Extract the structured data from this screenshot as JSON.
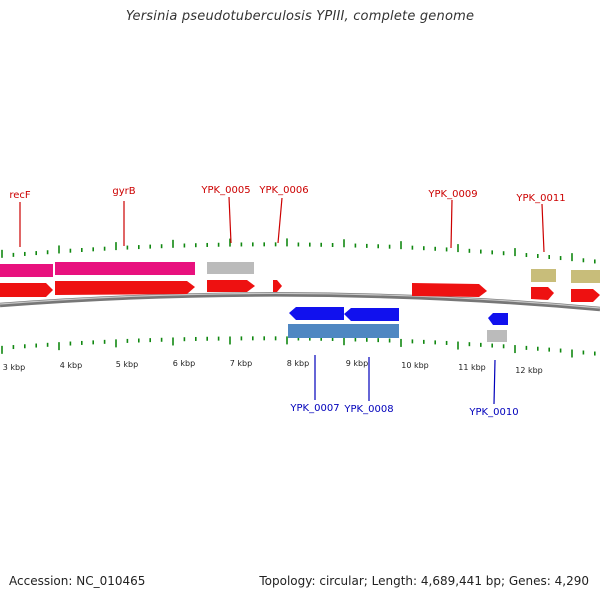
{
  "title": "Yersinia pseudotuberculosis YPIII, complete genome",
  "accession": "Accession: NC_010465",
  "summary": "Topology: circular; Length: 4,689,441 bp; Genes: 4,290",
  "colors": {
    "forward_cds": "#ee1111",
    "reverse_cds": "#1111ee",
    "forward_gene_magenta": "#e8117e",
    "rna_gray": "#bbbbbb",
    "khaki": "#c8bd7a",
    "steelblue": "#4f87c2",
    "tick_green": "#118811",
    "forward_label": "#cc0000",
    "reverse_label": "#0000bb",
    "backbone": "#777777"
  },
  "tick_labels": [
    "3 kbp",
    "4 kbp",
    "5 kbp",
    "6 kbp",
    "7 kbp",
    "8 kbp",
    "9 kbp",
    "10 kbp",
    "11 kbp",
    "12 kbp"
  ],
  "forward_labels": [
    {
      "text": "recF"
    },
    {
      "text": "gyrB"
    },
    {
      "text": "YPK_0005"
    },
    {
      "text": "YPK_0006"
    },
    {
      "text": "YPK_0009"
    },
    {
      "text": "YPK_0011"
    }
  ],
  "reverse_labels": [
    {
      "text": "YPK_0007"
    },
    {
      "text": "YPK_0008"
    },
    {
      "text": "YPK_0010"
    }
  ]
}
